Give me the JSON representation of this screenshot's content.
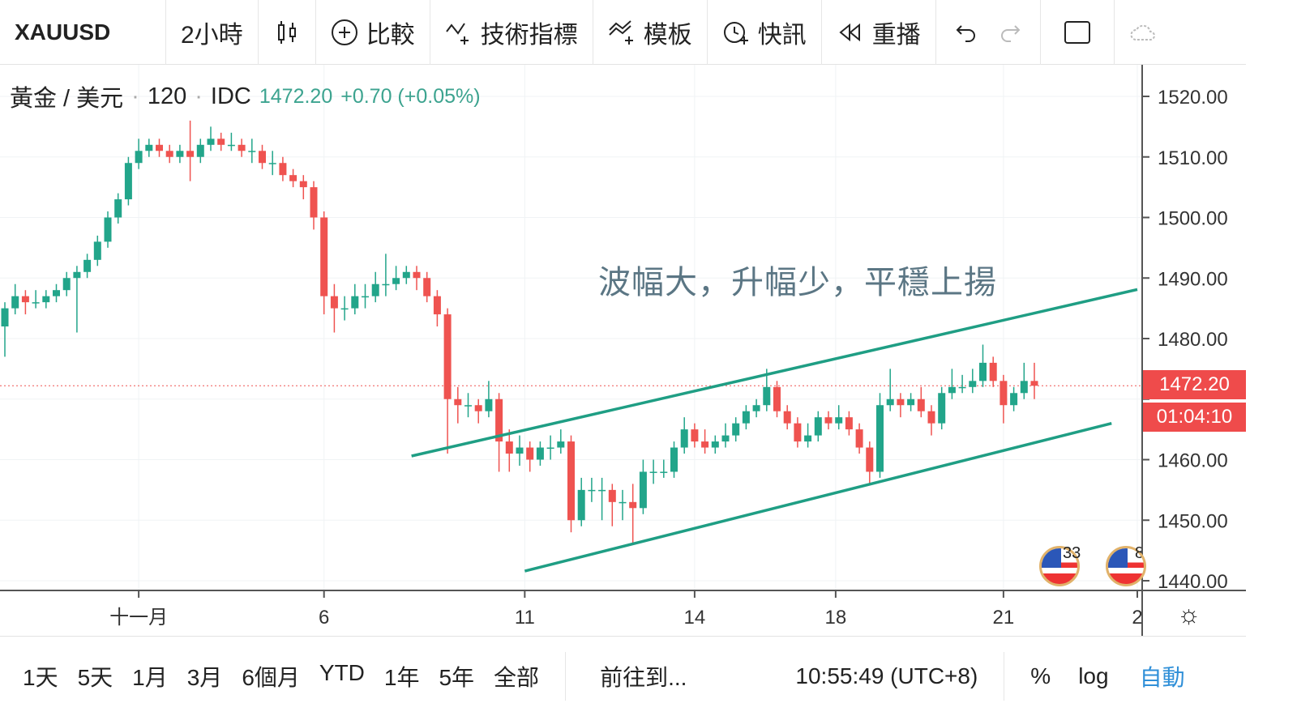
{
  "toolbar": {
    "symbol": "XAUUSD",
    "interval": "2小時",
    "chart_type_icon": "candles-icon",
    "compare": "比較",
    "indicators": "技術指標",
    "templates": "模板",
    "alerts": "快訊",
    "replay": "重播"
  },
  "legend": {
    "name": "黃金 / 美元",
    "interval": "120",
    "source": "IDC",
    "price": "1472.20",
    "change": "+0.70 (+0.05%)"
  },
  "annotation": "波幅大，升幅少，平穩上揚",
  "price_tag": {
    "price": "1472.20",
    "countdown": "01:04:10"
  },
  "events": [
    {
      "count": "33"
    },
    {
      "count": "8"
    }
  ],
  "bottom": {
    "ranges": [
      "1天",
      "5天",
      "1月",
      "3月",
      "6個月",
      "YTD",
      "1年",
      "5年",
      "全部"
    ],
    "goto": "前往到...",
    "time": "10:55:49 (UTC+8)",
    "percent": "%",
    "log": "log",
    "auto": "自動"
  },
  "colors": {
    "up": "#22a58a",
    "down": "#ef5350",
    "trendline": "#1f9e84",
    "price_tag": "#ef4b4b",
    "auto": "#2f8fd8"
  },
  "chart_data": {
    "type": "candlestick",
    "ylim": [
      1436,
      1524
    ],
    "y_ticks": [
      "1520.00",
      "1510.00",
      "1500.00",
      "1490.00",
      "1480.00",
      "1470.00",
      "1460.00",
      "1450.00",
      "1440.00"
    ],
    "x_ticks": [
      {
        "label": "十一月",
        "bar": 13
      },
      {
        "label": "6",
        "bar": 31
      },
      {
        "label": "11",
        "bar": 50.5
      },
      {
        "label": "14",
        "bar": 67
      },
      {
        "label": "18",
        "bar": 80.7
      },
      {
        "label": "21",
        "bar": 97
      },
      {
        "label": "2",
        "bar": 110
      }
    ],
    "grid": true,
    "last_price": 1472.2,
    "candles": [
      [
        1482,
        1486,
        1477,
        1485
      ],
      [
        1485,
        1489,
        1484,
        1487
      ],
      [
        1487,
        1488,
        1484,
        1486
      ],
      [
        1486,
        1488,
        1485,
        1486
      ],
      [
        1486,
        1488,
        1485,
        1487
      ],
      [
        1487,
        1489,
        1486,
        1488
      ],
      [
        1488,
        1491,
        1487,
        1490
      ],
      [
        1490,
        1492,
        1481,
        1491
      ],
      [
        1491,
        1494,
        1490,
        1493
      ],
      [
        1493,
        1497,
        1492,
        1496
      ],
      [
        1496,
        1501,
        1495,
        1500
      ],
      [
        1500,
        1504,
        1499,
        1503
      ],
      [
        1503,
        1510,
        1502,
        1509
      ],
      [
        1509,
        1513,
        1508,
        1511
      ],
      [
        1511,
        1513,
        1510,
        1512
      ],
      [
        1512,
        1513,
        1510,
        1511
      ],
      [
        1511,
        1512,
        1509,
        1510
      ],
      [
        1510,
        1512,
        1509,
        1511
      ],
      [
        1511,
        1516,
        1506,
        1510
      ],
      [
        1510,
        1513,
        1509,
        1512
      ],
      [
        1512,
        1515,
        1511,
        1513
      ],
      [
        1513,
        1514,
        1511,
        1512
      ],
      [
        1512,
        1514,
        1511,
        1512
      ],
      [
        1512,
        1513,
        1510,
        1511
      ],
      [
        1511,
        1513,
        1509,
        1511
      ],
      [
        1511,
        1512,
        1508,
        1509
      ],
      [
        1509,
        1511,
        1507,
        1509
      ],
      [
        1509,
        1510,
        1506,
        1507
      ],
      [
        1507,
        1508,
        1505,
        1506
      ],
      [
        1506,
        1507,
        1503,
        1505
      ],
      [
        1505,
        1506,
        1498,
        1500
      ],
      [
        1500,
        1501,
        1484,
        1487
      ],
      [
        1487,
        1489,
        1481,
        1485
      ],
      [
        1485,
        1487,
        1483,
        1485
      ],
      [
        1485,
        1489,
        1484,
        1487
      ],
      [
        1487,
        1489,
        1485,
        1487
      ],
      [
        1487,
        1491,
        1486,
        1489
      ],
      [
        1489,
        1494,
        1487,
        1489
      ],
      [
        1489,
        1492,
        1488,
        1490
      ],
      [
        1490,
        1492,
        1489,
        1491
      ],
      [
        1491,
        1492,
        1488,
        1490
      ],
      [
        1490,
        1491,
        1486,
        1487
      ],
      [
        1487,
        1488,
        1482,
        1484
      ],
      [
        1484,
        1485,
        1461,
        1470
      ],
      [
        1470,
        1472,
        1466,
        1469
      ],
      [
        1469,
        1471,
        1467,
        1469
      ],
      [
        1469,
        1470,
        1466,
        1468
      ],
      [
        1468,
        1473,
        1467,
        1470
      ],
      [
        1470,
        1471,
        1458,
        1463
      ],
      [
        1463,
        1465,
        1458,
        1461
      ],
      [
        1461,
        1464,
        1459,
        1462
      ],
      [
        1462,
        1463,
        1458,
        1460
      ],
      [
        1460,
        1463,
        1459,
        1462
      ],
      [
        1462,
        1464,
        1460,
        1462
      ],
      [
        1462,
        1465,
        1461,
        1463
      ],
      [
        1463,
        1464,
        1448,
        1450
      ],
      [
        1450,
        1457,
        1449,
        1455
      ],
      [
        1455,
        1457,
        1453,
        1455
      ],
      [
        1455,
        1457,
        1450,
        1455
      ],
      [
        1455,
        1456,
        1449,
        1453
      ],
      [
        1453,
        1455,
        1450,
        1453
      ],
      [
        1453,
        1456,
        1446,
        1452
      ],
      [
        1452,
        1460,
        1451,
        1458
      ],
      [
        1458,
        1460,
        1456,
        1458
      ],
      [
        1458,
        1460,
        1457,
        1458
      ],
      [
        1458,
        1463,
        1457,
        1462
      ],
      [
        1462,
        1467,
        1461,
        1465
      ],
      [
        1465,
        1466,
        1462,
        1463
      ],
      [
        1463,
        1465,
        1461,
        1462
      ],
      [
        1462,
        1464,
        1461,
        1463
      ],
      [
        1463,
        1466,
        1462,
        1464
      ],
      [
        1464,
        1467,
        1463,
        1466
      ],
      [
        1466,
        1469,
        1465,
        1468
      ],
      [
        1468,
        1470,
        1467,
        1469
      ],
      [
        1469,
        1475,
        1468,
        1472
      ],
      [
        1472,
        1473,
        1467,
        1468
      ],
      [
        1468,
        1469,
        1465,
        1466
      ],
      [
        1466,
        1467,
        1462,
        1463
      ],
      [
        1463,
        1466,
        1462,
        1464
      ],
      [
        1464,
        1468,
        1463,
        1467
      ],
      [
        1467,
        1468,
        1465,
        1466
      ],
      [
        1466,
        1469,
        1465,
        1467
      ],
      [
        1467,
        1468,
        1464,
        1465
      ],
      [
        1465,
        1466,
        1461,
        1462
      ],
      [
        1462,
        1463,
        1456,
        1458
      ],
      [
        1458,
        1471,
        1457,
        1469
      ],
      [
        1469,
        1475,
        1468,
        1470
      ],
      [
        1470,
        1471,
        1467,
        1469
      ],
      [
        1469,
        1471,
        1468,
        1470
      ],
      [
        1470,
        1472,
        1467,
        1468
      ],
      [
        1468,
        1469,
        1464,
        1466
      ],
      [
        1466,
        1472,
        1465,
        1471
      ],
      [
        1471,
        1475,
        1470,
        1472
      ],
      [
        1472,
        1474,
        1471,
        1472
      ],
      [
        1472,
        1475,
        1471,
        1473
      ],
      [
        1473,
        1479,
        1472,
        1476
      ],
      [
        1476,
        1477,
        1472,
        1473
      ],
      [
        1473,
        1474,
        1466,
        1469
      ],
      [
        1469,
        1472,
        1468,
        1471
      ],
      [
        1471,
        1476,
        1470,
        1473
      ],
      [
        1473,
        1476,
        1470,
        1472.2
      ]
    ],
    "trendlines": [
      {
        "from": {
          "bar": 39.5,
          "price": 1460.6
        },
        "to": {
          "bar": 110,
          "price": 1488.1
        }
      },
      {
        "from": {
          "bar": 50.5,
          "price": 1441.6
        },
        "to": {
          "bar": 107.5,
          "price": 1466
        }
      }
    ]
  }
}
